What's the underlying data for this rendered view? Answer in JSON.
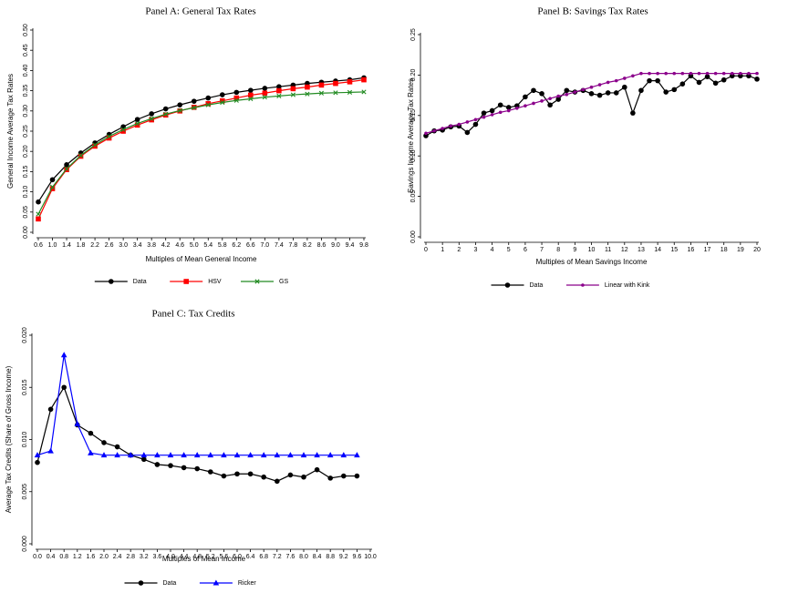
{
  "chart_data": [
    {
      "type": "line",
      "title": "Panel A: General Tax Rates",
      "x_label": "Multiples of Mean General Income",
      "y_label": "General Income Average Tax Rates",
      "x": [
        0.6,
        1.0,
        1.4,
        1.8,
        2.2,
        2.6,
        3.0,
        3.4,
        3.8,
        4.2,
        4.6,
        5.0,
        5.4,
        5.8,
        6.2,
        6.6,
        7.0,
        7.4,
        7.8,
        8.2,
        8.6,
        9.0,
        9.4,
        9.8
      ],
      "series": [
        {
          "name": "Data",
          "color": "#000000",
          "marker": "circle",
          "values": [
            0.075,
            0.13,
            0.167,
            0.196,
            0.221,
            0.242,
            0.261,
            0.279,
            0.293,
            0.305,
            0.315,
            0.324,
            0.332,
            0.34,
            0.346,
            0.351,
            0.356,
            0.36,
            0.364,
            0.368,
            0.371,
            0.374,
            0.377,
            0.382
          ]
        },
        {
          "name": "HSV",
          "color": "#ff0000",
          "marker": "square",
          "values": [
            0.033,
            0.108,
            0.155,
            0.188,
            0.213,
            0.233,
            0.25,
            0.265,
            0.278,
            0.29,
            0.3,
            0.309,
            0.318,
            0.325,
            0.332,
            0.339,
            0.344,
            0.35,
            0.355,
            0.359,
            0.364,
            0.368,
            0.372,
            0.377
          ]
        },
        {
          "name": "GS",
          "color": "#228b22",
          "marker": "x",
          "values": [
            0.045,
            0.112,
            0.157,
            0.19,
            0.216,
            0.237,
            0.254,
            0.269,
            0.281,
            0.292,
            0.301,
            0.308,
            0.315,
            0.321,
            0.326,
            0.33,
            0.334,
            0.337,
            0.34,
            0.342,
            0.344,
            0.345,
            0.346,
            0.347
          ]
        }
      ],
      "xlim": [
        0.6,
        9.8
      ],
      "xticks": [
        {
          "value": 0.6,
          "label": "0.6"
        },
        {
          "value": 1.0,
          "label": "1.0"
        },
        {
          "value": 1.4,
          "label": "1.4"
        },
        {
          "value": 1.8,
          "label": "1.8"
        },
        {
          "value": 2.2,
          "label": "2.2"
        },
        {
          "value": 2.6,
          "label": "2.6"
        },
        {
          "value": 3.0,
          "label": "3.0"
        },
        {
          "value": 3.4,
          "label": "3.4"
        },
        {
          "value": 3.8,
          "label": "3.8"
        },
        {
          "value": 4.2,
          "label": "4.2"
        },
        {
          "value": 4.6,
          "label": "4.6"
        },
        {
          "value": 5.0,
          "label": "5.0"
        },
        {
          "value": 5.4,
          "label": "5.4"
        },
        {
          "value": 5.8,
          "label": "5.8"
        },
        {
          "value": 6.2,
          "label": "6.2"
        },
        {
          "value": 6.6,
          "label": "6.6"
        },
        {
          "value": 7.0,
          "label": "7.0"
        },
        {
          "value": 7.4,
          "label": "7.4"
        },
        {
          "value": 7.8,
          "label": "7.8"
        },
        {
          "value": 8.2,
          "label": "8.2"
        },
        {
          "value": 8.6,
          "label": "8.6"
        },
        {
          "value": 9.0,
          "label": "9.0"
        },
        {
          "value": 9.4,
          "label": "9.4"
        },
        {
          "value": 9.8,
          "label": "9.8"
        }
      ],
      "ylim": [
        0,
        0.5
      ],
      "yticks": [
        {
          "value": 0,
          "label": "0.00"
        },
        {
          "value": 0.05,
          "label": "0.05"
        },
        {
          "value": 0.1,
          "label": "0.10"
        },
        {
          "value": 0.15,
          "label": "0.15"
        },
        {
          "value": 0.2,
          "label": "0.20"
        },
        {
          "value": 0.25,
          "label": "0.25"
        },
        {
          "value": 0.3,
          "label": "0.30"
        },
        {
          "value": 0.35,
          "label": "0.35"
        },
        {
          "value": 0.4,
          "label": "0.40"
        },
        {
          "value": 0.45,
          "label": "0.45"
        },
        {
          "value": 0.5,
          "label": "0.50"
        }
      ],
      "grid": false
    },
    {
      "type": "line",
      "title": "Panel B: Savings Tax Rates",
      "x_label": "Multiples of Mean Savings Income",
      "y_label": "Savings Income Average Tax Rates",
      "x": [
        0,
        0.5,
        1,
        1.5,
        2,
        2.5,
        3,
        3.5,
        4,
        4.5,
        5,
        5.5,
        6,
        6.5,
        7,
        7.5,
        8,
        8.5,
        9,
        9.5,
        10,
        10.5,
        11,
        11.5,
        12,
        12.5,
        13,
        13.5,
        14,
        14.5,
        15,
        15.5,
        16,
        16.5,
        17,
        17.5,
        18,
        18.5,
        19,
        19.5,
        20
      ],
      "series": [
        {
          "name": "Data",
          "color": "#000000",
          "marker": "circle",
          "values": [
            0.125,
            0.131,
            0.132,
            0.136,
            0.137,
            0.129,
            0.139,
            0.153,
            0.156,
            0.163,
            0.16,
            0.162,
            0.173,
            0.181,
            0.177,
            0.163,
            0.17,
            0.181,
            0.179,
            0.181,
            0.177,
            0.175,
            0.178,
            0.178,
            0.185,
            0.153,
            0.181,
            0.193,
            0.193,
            0.179,
            0.182,
            0.189,
            0.199,
            0.191,
            0.198,
            0.19,
            0.194,
            0.199,
            0.199,
            0.199,
            0.195
          ]
        },
        {
          "name": "Linear with Kink",
          "color": "#8b008b",
          "marker": "dot",
          "values": [
            0.128,
            0.131,
            0.134,
            0.137,
            0.139,
            0.142,
            0.145,
            0.148,
            0.151,
            0.154,
            0.156,
            0.159,
            0.162,
            0.165,
            0.168,
            0.171,
            0.174,
            0.176,
            0.179,
            0.182,
            0.185,
            0.188,
            0.191,
            0.193,
            0.196,
            0.199,
            0.202,
            0.202,
            0.202,
            0.202,
            0.202,
            0.202,
            0.202,
            0.202,
            0.202,
            0.202,
            0.202,
            0.202,
            0.202,
            0.202,
            0.202
          ]
        }
      ],
      "xlim": [
        0,
        20
      ],
      "xticks": [
        0,
        1,
        2,
        3,
        4,
        5,
        6,
        7,
        8,
        9,
        10,
        11,
        12,
        13,
        14,
        15,
        16,
        17,
        18,
        19,
        20
      ],
      "ylim": [
        0,
        0.25
      ],
      "yticks": [
        {
          "value": 0,
          "label": "0.00"
        },
        {
          "value": 0.05,
          "label": "0.05"
        },
        {
          "value": 0.1,
          "label": "0.10"
        },
        {
          "value": 0.15,
          "label": "0.15"
        },
        {
          "value": 0.2,
          "label": "0.20"
        },
        {
          "value": 0.25,
          "label": "0.25"
        }
      ],
      "grid": false
    },
    {
      "type": "line",
      "title": "Panel C: Tax Credits",
      "x_label": "Multiples of Mean Income",
      "y_label": "Average Tax Credits (Share of Gross Income)",
      "x": [
        0,
        0.4,
        0.8,
        1.2,
        1.6,
        2.0,
        2.4,
        2.8,
        3.2,
        3.6,
        4.0,
        4.4,
        4.8,
        5.2,
        5.6,
        6.0,
        6.4,
        6.8,
        7.2,
        7.6,
        8.0,
        8.4,
        8.8,
        9.2,
        9.6
      ],
      "series": [
        {
          "name": "Data",
          "color": "#000000",
          "marker": "circle",
          "values": [
            0.0078,
            0.0129,
            0.015,
            0.0114,
            0.0106,
            0.0097,
            0.0093,
            0.0085,
            0.0081,
            0.0076,
            0.0075,
            0.0073,
            0.0072,
            0.0069,
            0.0065,
            0.0067,
            0.0067,
            0.0064,
            0.006,
            0.0066,
            0.0064,
            0.0071,
            0.0063,
            0.0065,
            0.0065
          ]
        },
        {
          "name": "Ricker",
          "color": "#0000ff",
          "marker": "triangle",
          "values": [
            0.0085,
            0.0089,
            0.0181,
            0.0115,
            0.0087,
            0.0085,
            0.0085,
            0.0085,
            0.0085,
            0.0085,
            0.0085,
            0.0085,
            0.0085,
            0.0085,
            0.0085,
            0.0085,
            0.0085,
            0.0085,
            0.0085,
            0.0085,
            0.0085,
            0.0085,
            0.0085,
            0.0085,
            0.0085
          ]
        }
      ],
      "xlim": [
        0,
        10
      ],
      "xticks": [
        {
          "value": 0,
          "label": "0.0"
        },
        {
          "value": 0.4,
          "label": "0.4"
        },
        {
          "value": 0.8,
          "label": "0.8"
        },
        {
          "value": 1.2,
          "label": "1.2"
        },
        {
          "value": 1.6,
          "label": "1.6"
        },
        {
          "value": 2.0,
          "label": "2.0"
        },
        {
          "value": 2.4,
          "label": "2.4"
        },
        {
          "value": 2.8,
          "label": "2.8"
        },
        {
          "value": 3.2,
          "label": "3.2"
        },
        {
          "value": 3.6,
          "label": "3.6"
        },
        {
          "value": 4.0,
          "label": "4.0"
        },
        {
          "value": 4.4,
          "label": "4.4"
        },
        {
          "value": 4.8,
          "label": "4.8"
        },
        {
          "value": 5.2,
          "label": "5.2"
        },
        {
          "value": 5.6,
          "label": "5.6"
        },
        {
          "value": 6.0,
          "label": "6.0"
        },
        {
          "value": 6.4,
          "label": "6.4"
        },
        {
          "value": 6.8,
          "label": "6.8"
        },
        {
          "value": 7.2,
          "label": "7.2"
        },
        {
          "value": 7.6,
          "label": "7.6"
        },
        {
          "value": 8.0,
          "label": "8.0"
        },
        {
          "value": 8.4,
          "label": "8.4"
        },
        {
          "value": 8.8,
          "label": "8.8"
        },
        {
          "value": 9.2,
          "label": "9.2"
        },
        {
          "value": 9.6,
          "label": "9.6"
        },
        {
          "value": 10.0,
          "label": "10.0"
        }
      ],
      "ylim": [
        0,
        0.02
      ],
      "yticks": [
        {
          "value": 0,
          "label": "0.000"
        },
        {
          "value": 0.005,
          "label": "0.005"
        },
        {
          "value": 0.01,
          "label": "0.010"
        },
        {
          "value": 0.015,
          "label": "0.015"
        },
        {
          "value": 0.02,
          "label": "0.020"
        }
      ],
      "grid": false
    }
  ]
}
